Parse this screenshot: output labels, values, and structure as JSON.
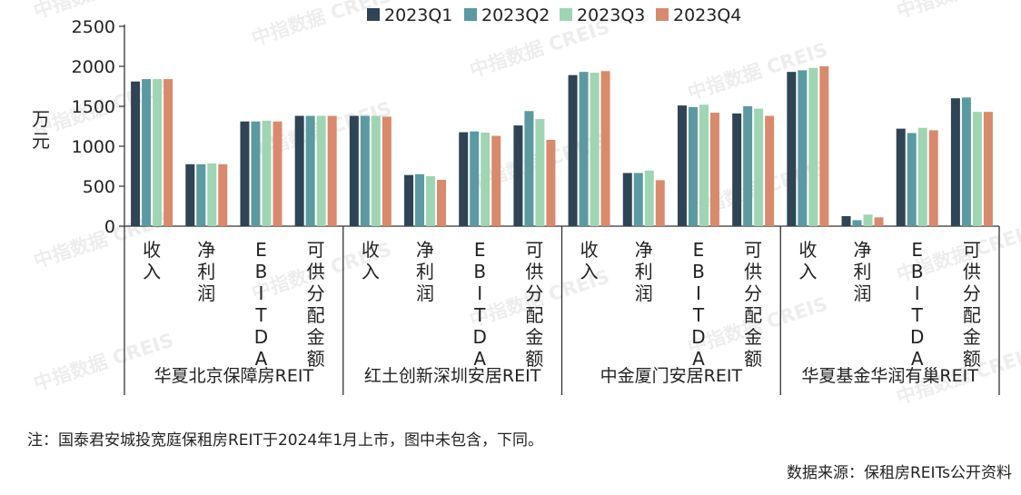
{
  "colors": {
    "2023Q1": "#2f4454",
    "2023Q2": "#5b9aa0",
    "2023Q3": "#9fd5b3",
    "2023Q4": "#d98a6c"
  },
  "watermark": "中指数据 CREIS",
  "footer": {
    "note": "注：国泰君安城投宽庭保租房REIT于2024年1月上市，图中未包含，下同。",
    "source": "数据来源：保租房REITs公开资料"
  },
  "chart_data": {
    "type": "bar",
    "ylabel": "万元",
    "ylim": [
      0,
      2500
    ],
    "yticks": [
      0,
      500,
      1000,
      1500,
      2000,
      2500
    ],
    "legend_position": "top-center",
    "grid": false,
    "series_names": [
      "2023Q1",
      "2023Q2",
      "2023Q3",
      "2023Q4"
    ],
    "groups": [
      {
        "name": "华夏北京保障房REIT",
        "categories": [
          {
            "label": "收入",
            "values": [
              1810,
              1840,
              1840,
              1840
            ]
          },
          {
            "label": "净利润",
            "values": [
              775,
              775,
              785,
              775
            ]
          },
          {
            "label": "EBITDA",
            "values": [
              1310,
              1310,
              1320,
              1310
            ]
          },
          {
            "label": "可供分配金额",
            "values": [
              1380,
              1380,
              1380,
              1380
            ]
          }
        ]
      },
      {
        "name": "红土创新深圳安居REIT",
        "categories": [
          {
            "label": "收入",
            "values": [
              1380,
              1380,
              1380,
              1370
            ]
          },
          {
            "label": "净利润",
            "values": [
              640,
              650,
              625,
              580
            ]
          },
          {
            "label": "EBITDA",
            "values": [
              1175,
              1185,
              1170,
              1130
            ]
          },
          {
            "label": "可供分配金额",
            "values": [
              1260,
              1440,
              1340,
              1080
            ]
          }
        ]
      },
      {
        "name": "中金厦门安居REIT",
        "categories": [
          {
            "label": "收入",
            "values": [
              1890,
              1930,
              1920,
              1940
            ]
          },
          {
            "label": "净利润",
            "values": [
              665,
              665,
              695,
              575
            ]
          },
          {
            "label": "EBITDA",
            "values": [
              1510,
              1490,
              1520,
              1420
            ]
          },
          {
            "label": "可供分配金额",
            "values": [
              1410,
              1500,
              1470,
              1380
            ]
          }
        ]
      },
      {
        "name": "华夏基金华润有巢REIT",
        "categories": [
          {
            "label": "收入",
            "values": [
              1930,
              1950,
              1980,
              2000
            ]
          },
          {
            "label": "净利润",
            "values": [
              125,
              75,
              145,
              110
            ]
          },
          {
            "label": "EBITDA",
            "values": [
              1220,
              1165,
              1230,
              1200
            ]
          },
          {
            "label": "可供分配金额",
            "values": [
              1600,
              1610,
              1430,
              1430
            ]
          }
        ]
      }
    ]
  }
}
